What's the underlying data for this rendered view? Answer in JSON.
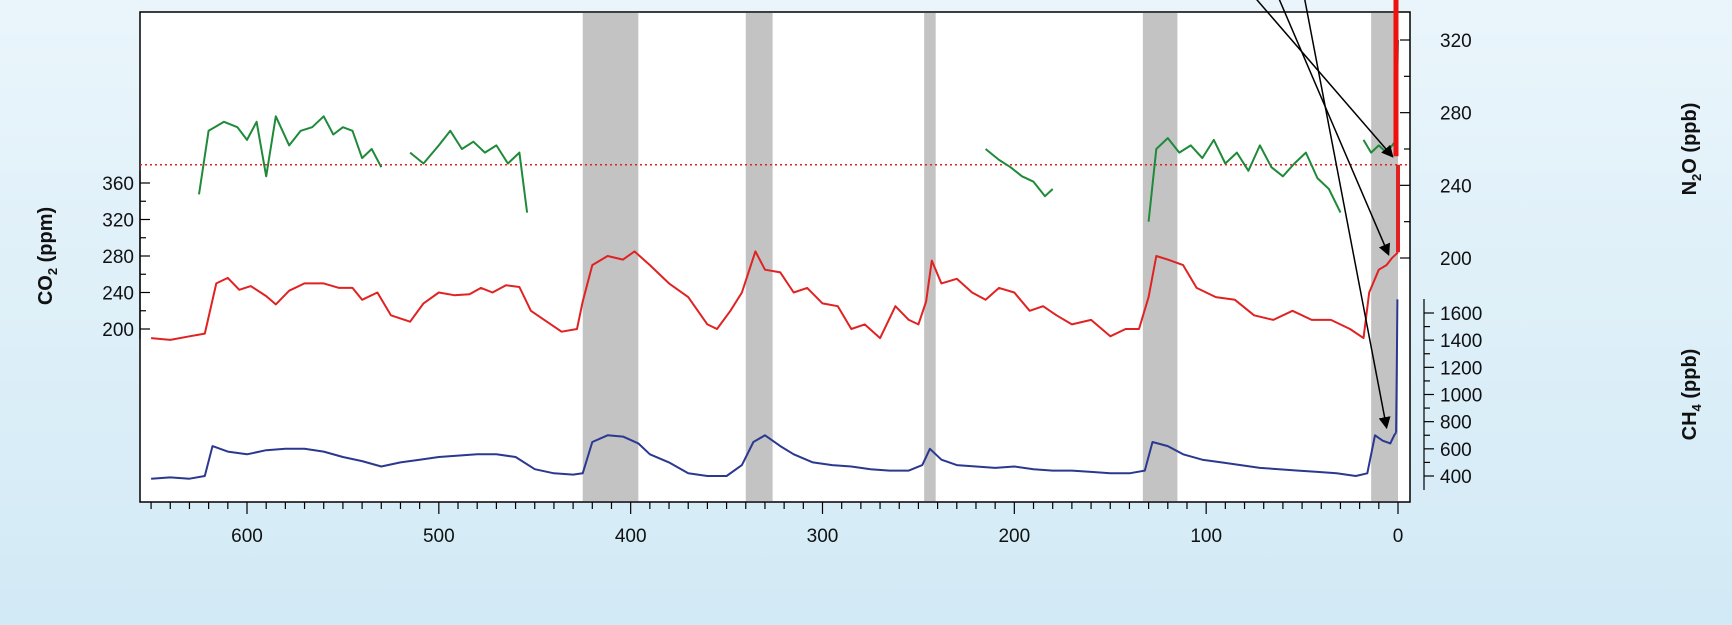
{
  "chart_data": {
    "type": "line",
    "x_axis": {
      "range": [
        650,
        0
      ],
      "ticks": [
        600,
        500,
        400,
        300,
        200,
        100,
        0
      ],
      "minor_step": 10
    },
    "interglacial_bands": [
      [
        425,
        396
      ],
      [
        340,
        326
      ],
      [
        247,
        241
      ],
      [
        133,
        115
      ],
      [
        14,
        0
      ]
    ],
    "reference_level_co2": 380,
    "axes": {
      "n2o": {
        "label_main": "N",
        "label_sub": "2",
        "label_tail": "O (ppb)",
        "range": [
          180,
          340
        ],
        "ticks": [
          200,
          240,
          280,
          320
        ]
      },
      "co2": {
        "label_main": "CO",
        "label_sub": "2",
        "label_tail": " (ppm)",
        "range": [
          100,
          380
        ],
        "ticks": [
          200,
          240,
          280,
          320,
          360
        ]
      },
      "ch4": {
        "label_main": "CH",
        "label_sub": "4",
        "label_tail": " (ppb)",
        "range": [
          200,
          1700
        ],
        "ticks": [
          400,
          600,
          800,
          1000,
          1200,
          1400,
          1600
        ]
      }
    },
    "series": [
      {
        "axis": "n2o",
        "color": "#1f8a3a",
        "segments": [
          [
            [
              625,
              235
            ],
            [
              620,
              270
            ],
            [
              612,
              275
            ],
            [
              605,
              272
            ],
            [
              600,
              265
            ],
            [
              595,
              275
            ],
            [
              590,
              245
            ],
            [
              585,
              278
            ],
            [
              578,
              262
            ],
            [
              572,
              270
            ],
            [
              566,
              272
            ],
            [
              560,
              278
            ],
            [
              555,
              268
            ],
            [
              550,
              272
            ],
            [
              545,
              270
            ],
            [
              540,
              255
            ],
            [
              535,
              260
            ],
            [
              530,
              250
            ]
          ],
          [
            [
              515,
              258
            ],
            [
              508,
              252
            ],
            [
              500,
              262
            ],
            [
              494,
              270
            ],
            [
              488,
              260
            ],
            [
              482,
              264
            ],
            [
              476,
              258
            ],
            [
              470,
              262
            ],
            [
              464,
              252
            ],
            [
              458,
              258
            ],
            [
              454,
              225
            ]
          ],
          [
            [
              215,
              260
            ],
            [
              208,
              254
            ],
            [
              202,
              250
            ],
            [
              196,
              245
            ],
            [
              190,
              242
            ],
            [
              184,
              234
            ],
            [
              180,
              238
            ]
          ],
          [
            [
              130,
              220
            ],
            [
              126,
              260
            ],
            [
              120,
              266
            ],
            [
              114,
              258
            ],
            [
              108,
              262
            ],
            [
              102,
              255
            ],
            [
              96,
              265
            ],
            [
              90,
              252
            ],
            [
              84,
              258
            ],
            [
              78,
              248
            ],
            [
              72,
              262
            ],
            [
              66,
              250
            ],
            [
              60,
              245
            ],
            [
              54,
              252
            ],
            [
              48,
              258
            ],
            [
              42,
              244
            ],
            [
              36,
              238
            ],
            [
              30,
              225
            ]
          ],
          [
            [
              18,
              265
            ],
            [
              14,
              258
            ],
            [
              10,
              262
            ],
            [
              6,
              258
            ],
            [
              3,
              262
            ],
            [
              1,
              265
            ],
            [
              0,
              320
            ]
          ]
        ]
      },
      {
        "axis": "co2",
        "color": "#e02222",
        "segments": [
          [
            [
              650,
              190
            ],
            [
              640,
              188
            ],
            [
              630,
              192
            ],
            [
              622,
              195
            ],
            [
              616,
              250
            ],
            [
              610,
              256
            ],
            [
              604,
              243
            ],
            [
              598,
              247
            ],
            [
              590,
              236
            ],
            [
              585,
              227
            ],
            [
              578,
              242
            ],
            [
              570,
              250
            ],
            [
              560,
              250
            ],
            [
              552,
              245
            ],
            [
              545,
              245
            ],
            [
              540,
              232
            ],
            [
              532,
              240
            ],
            [
              525,
              215
            ],
            [
              515,
              208
            ],
            [
              508,
              228
            ],
            [
              500,
              240
            ],
            [
              492,
              237
            ],
            [
              484,
              238
            ],
            [
              478,
              245
            ],
            [
              472,
              240
            ],
            [
              465,
              248
            ],
            [
              458,
              246
            ],
            [
              452,
              220
            ],
            [
              445,
              210
            ],
            [
              436,
              197
            ],
            [
              428,
              200
            ],
            [
              425,
              230
            ],
            [
              420,
              270
            ],
            [
              412,
              280
            ],
            [
              404,
              276
            ],
            [
              398,
              285
            ],
            [
              390,
              270
            ],
            [
              380,
              250
            ],
            [
              370,
              235
            ],
            [
              360,
              205
            ],
            [
              355,
              200
            ],
            [
              348,
              220
            ],
            [
              342,
              240
            ],
            [
              335,
              285
            ],
            [
              330,
              265
            ],
            [
              322,
              262
            ],
            [
              315,
              240
            ],
            [
              308,
              245
            ],
            [
              300,
              228
            ],
            [
              292,
              225
            ],
            [
              285,
              200
            ],
            [
              278,
              205
            ],
            [
              270,
              190
            ],
            [
              262,
              225
            ],
            [
              255,
              210
            ],
            [
              250,
              205
            ],
            [
              246,
              230
            ],
            [
              243,
              275
            ],
            [
              238,
              250
            ],
            [
              230,
              255
            ],
            [
              222,
              240
            ],
            [
              215,
              232
            ],
            [
              208,
              245
            ],
            [
              200,
              240
            ],
            [
              192,
              220
            ],
            [
              185,
              225
            ],
            [
              178,
              215
            ],
            [
              170,
              205
            ],
            [
              160,
              210
            ],
            [
              150,
              192
            ],
            [
              142,
              200
            ],
            [
              135,
              200
            ],
            [
              130,
              235
            ],
            [
              126,
              280
            ],
            [
              120,
              276
            ],
            [
              112,
              270
            ],
            [
              105,
              245
            ],
            [
              95,
              235
            ],
            [
              85,
              232
            ],
            [
              75,
              215
            ],
            [
              65,
              210
            ],
            [
              55,
              220
            ],
            [
              45,
              210
            ],
            [
              35,
              210
            ],
            [
              25,
              200
            ],
            [
              18,
              190
            ],
            [
              15,
              240
            ],
            [
              10,
              265
            ],
            [
              6,
              270
            ],
            [
              3,
              278
            ],
            [
              1,
              282
            ],
            [
              0,
              284
            ]
          ],
          [
            [
              0,
              284
            ],
            [
              0,
              300
            ],
            [
              0,
              380
            ]
          ]
        ]
      },
      {
        "axis": "ch4",
        "color": "#2a3890",
        "segments": [
          [
            [
              650,
              380
            ],
            [
              640,
              390
            ],
            [
              630,
              380
            ],
            [
              622,
              400
            ],
            [
              618,
              620
            ],
            [
              610,
              580
            ],
            [
              600,
              560
            ],
            [
              590,
              590
            ],
            [
              580,
              600
            ],
            [
              570,
              600
            ],
            [
              560,
              580
            ],
            [
              550,
              540
            ],
            [
              540,
              510
            ],
            [
              530,
              470
            ],
            [
              520,
              500
            ],
            [
              510,
              520
            ],
            [
              500,
              540
            ],
            [
              490,
              550
            ],
            [
              480,
              560
            ],
            [
              470,
              560
            ],
            [
              460,
              540
            ],
            [
              450,
              450
            ],
            [
              440,
              420
            ],
            [
              430,
              410
            ],
            [
              425,
              420
            ],
            [
              420,
              650
            ],
            [
              412,
              700
            ],
            [
              404,
              690
            ],
            [
              396,
              640
            ],
            [
              390,
              560
            ],
            [
              380,
              500
            ],
            [
              370,
              420
            ],
            [
              360,
              400
            ],
            [
              350,
              400
            ],
            [
              342,
              480
            ],
            [
              336,
              650
            ],
            [
              330,
              700
            ],
            [
              322,
              620
            ],
            [
              315,
              560
            ],
            [
              305,
              500
            ],
            [
              295,
              480
            ],
            [
              285,
              470
            ],
            [
              275,
              450
            ],
            [
              265,
              440
            ],
            [
              255,
              440
            ],
            [
              248,
              480
            ],
            [
              244,
              600
            ],
            [
              238,
              520
            ],
            [
              230,
              480
            ],
            [
              220,
              470
            ],
            [
              210,
              460
            ],
            [
              200,
              470
            ],
            [
              190,
              450
            ],
            [
              180,
              440
            ],
            [
              170,
              440
            ],
            [
              160,
              430
            ],
            [
              150,
              420
            ],
            [
              140,
              420
            ],
            [
              132,
              440
            ],
            [
              128,
              650
            ],
            [
              120,
              620
            ],
            [
              112,
              560
            ],
            [
              102,
              520
            ],
            [
              92,
              500
            ],
            [
              82,
              480
            ],
            [
              72,
              460
            ],
            [
              62,
              450
            ],
            [
              52,
              440
            ],
            [
              42,
              430
            ],
            [
              32,
              420
            ],
            [
              22,
              400
            ],
            [
              16,
              420
            ],
            [
              12,
              700
            ],
            [
              8,
              660
            ],
            [
              4,
              640
            ],
            [
              2,
              700
            ],
            [
              1,
              720
            ]
          ],
          [
            [
              1,
              720
            ],
            [
              0.6,
              1200
            ],
            [
              0.3,
              1700
            ]
          ]
        ]
      }
    ],
    "arrows": [
      {
        "from_x": 80,
        "from_n2o": 350,
        "to_x": 3,
        "to_n2o": 256
      },
      {
        "from_x": 65,
        "from_n2o": 350,
        "to_x": 5,
        "to_co2": 282
      },
      {
        "from_x": 50,
        "from_n2o": 350,
        "to_x": 6,
        "to_ch4": 760
      }
    ]
  }
}
